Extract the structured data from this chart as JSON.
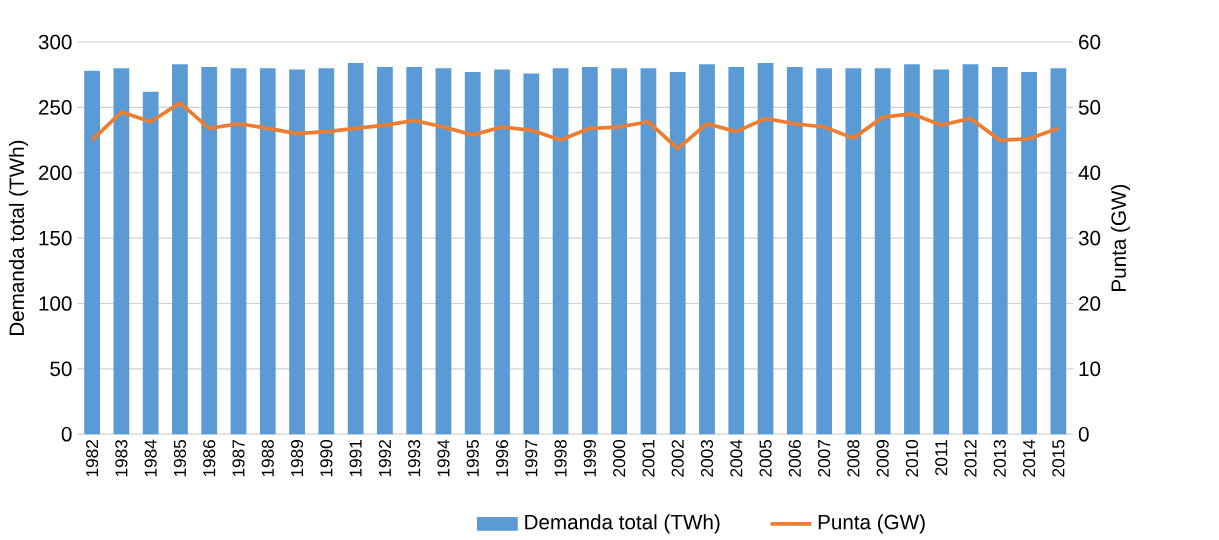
{
  "chart_data": {
    "type": "bar",
    "ylabel": "Demanda total (TWh)",
    "y2label": "Punta (GW)",
    "categories": [
      "1982",
      "1983",
      "1984",
      "1985",
      "1986",
      "1987",
      "1988",
      "1989",
      "1990",
      "1991",
      "1992",
      "1993",
      "1994",
      "1995",
      "1996",
      "1997",
      "1998",
      "1999",
      "2000",
      "2001",
      "2002",
      "2003",
      "2004",
      "2005",
      "2006",
      "2007",
      "2008",
      "2009",
      "2010",
      "2011",
      "2012",
      "2013",
      "2014",
      "2015"
    ],
    "series": [
      {
        "name": "Demanda total (TWh)",
        "color": "#5b9bd5",
        "values": [
          278,
          280,
          262,
          283,
          281,
          280,
          280,
          279,
          280,
          284,
          281,
          281,
          280,
          277,
          279,
          276,
          280,
          281,
          280,
          280,
          277,
          283,
          281,
          284,
          281,
          280,
          280,
          280,
          283,
          279,
          283,
          281,
          277,
          280
        ]
      },
      {
        "name": "Punta (GW)",
        "type": "line",
        "axis": "y2",
        "color": "#ed7d31",
        "values": [
          45,
          49.3,
          47.8,
          50.7,
          46.8,
          47.5,
          46.8,
          46,
          46.3,
          46.8,
          47.3,
          48,
          47,
          45.8,
          47,
          46.5,
          45,
          46.8,
          47,
          47.8,
          43.7,
          47.5,
          46.3,
          48.3,
          47.5,
          47,
          45.3,
          48.5,
          49,
          47.3,
          48.3,
          45,
          45.2,
          46.8
        ]
      }
    ],
    "ylim": [
      0,
      300
    ],
    "yticks": [
      0,
      50,
      100,
      150,
      200,
      250,
      300
    ],
    "y2lim": [
      0,
      60
    ],
    "y2ticks": [
      0,
      10,
      20,
      30,
      40,
      50,
      60
    ],
    "grid": "y",
    "legend": "bottom"
  }
}
